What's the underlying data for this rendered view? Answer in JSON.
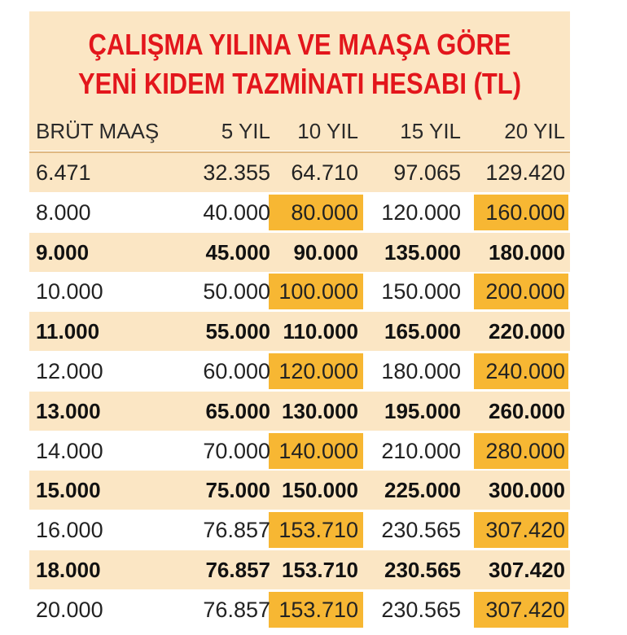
{
  "title": {
    "line1": "ÇALIŞMA YILINA VE MAAŞA GÖRE",
    "line2": "YENİ KIDEM TAZMİNATI HESABI (TL)"
  },
  "colors": {
    "title_red": "#e3161c",
    "beige": "#fbe6c4",
    "highlight": "#f7b733"
  },
  "table": {
    "headers": [
      "BRÜT MAAŞ",
      "5 YIL",
      "10 YIL",
      "15 YIL",
      "20 YIL"
    ],
    "rows": [
      {
        "cells": [
          "6.471",
          "32.355",
          "64.710",
          "97.065",
          "129.420"
        ],
        "bold": false,
        "highlight": false
      },
      {
        "cells": [
          "8.000",
          "40.000",
          "80.000",
          "120.000",
          "160.000"
        ],
        "bold": false,
        "highlight": true
      },
      {
        "cells": [
          "9.000",
          "45.000",
          "90.000",
          "135.000",
          "180.000"
        ],
        "bold": true,
        "highlight": false
      },
      {
        "cells": [
          "10.000",
          "50.000",
          "100.000",
          "150.000",
          "200.000"
        ],
        "bold": false,
        "highlight": true
      },
      {
        "cells": [
          "11.000",
          "55.000",
          "110.000",
          "165.000",
          "220.000"
        ],
        "bold": true,
        "highlight": false
      },
      {
        "cells": [
          "12.000",
          "60.000",
          "120.000",
          "180.000",
          "240.000"
        ],
        "bold": false,
        "highlight": true
      },
      {
        "cells": [
          "13.000",
          "65.000",
          "130.000",
          "195.000",
          "260.000"
        ],
        "bold": true,
        "highlight": false
      },
      {
        "cells": [
          "14.000",
          "70.000",
          "140.000",
          "210.000",
          "280.000"
        ],
        "bold": false,
        "highlight": true
      },
      {
        "cells": [
          "15.000",
          "75.000",
          "150.000",
          "225.000",
          "300.000"
        ],
        "bold": true,
        "highlight": false
      },
      {
        "cells": [
          "16.000",
          "76.857",
          "153.710",
          "230.565",
          "307.420"
        ],
        "bold": false,
        "highlight": true
      },
      {
        "cells": [
          "18.000",
          "76.857",
          "153.710",
          "230.565",
          "307.420"
        ],
        "bold": true,
        "highlight": false
      },
      {
        "cells": [
          "20.000",
          "76.857",
          "153.710",
          "230.565",
          "307.420"
        ],
        "bold": false,
        "highlight": true
      }
    ]
  }
}
